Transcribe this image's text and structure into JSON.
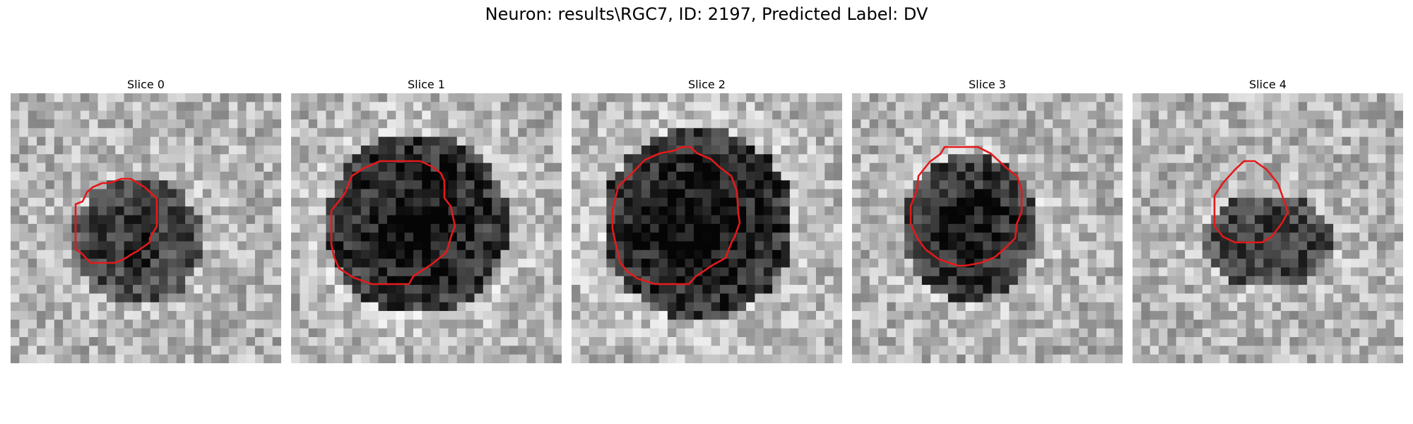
{
  "figure": {
    "title": "Neuron: results\\RGC7, ID: 2197, Predicted Label: DV",
    "contour_color": "#e31a1c"
  },
  "panels": [
    {
      "title": "Slice 0",
      "contour_points": [
        [
          140,
          127
        ],
        [
          157,
          121
        ],
        [
          170,
          121
        ],
        [
          190,
          133
        ],
        [
          207,
          149
        ],
        [
          207,
          188
        ],
        [
          197,
          205
        ],
        [
          197,
          211
        ],
        [
          180,
          223
        ],
        [
          171,
          228
        ],
        [
          160,
          235
        ],
        [
          147,
          240
        ],
        [
          113,
          240
        ],
        [
          100,
          226
        ],
        [
          92,
          221
        ],
        [
          92,
          157
        ],
        [
          102,
          153
        ],
        [
          108,
          140
        ],
        [
          116,
          133
        ],
        [
          130,
          127
        ]
      ]
    },
    {
      "title": "Slice 1",
      "contour_points": [
        [
          144,
          96
        ],
        [
          183,
          96
        ],
        [
          198,
          103
        ],
        [
          212,
          113
        ],
        [
          217,
          124
        ],
        [
          217,
          148
        ],
        [
          226,
          160
        ],
        [
          232,
          188
        ],
        [
          227,
          201
        ],
        [
          220,
          225
        ],
        [
          199,
          242
        ],
        [
          185,
          251
        ],
        [
          173,
          259
        ],
        [
          167,
          270
        ],
        [
          114,
          270
        ],
        [
          89,
          261
        ],
        [
          68,
          248
        ],
        [
          61,
          232
        ],
        [
          57,
          214
        ],
        [
          57,
          166
        ],
        [
          76,
          142
        ],
        [
          86,
          117
        ],
        [
          103,
          106
        ],
        [
          126,
          96
        ]
      ]
    },
    {
      "title": "Slice 2",
      "contour_points": [
        [
          156,
          76
        ],
        [
          168,
          76
        ],
        [
          178,
          85
        ],
        [
          197,
          93
        ],
        [
          210,
          105
        ],
        [
          226,
          117
        ],
        [
          234,
          138
        ],
        [
          236,
          170
        ],
        [
          238,
          183
        ],
        [
          231,
          203
        ],
        [
          226,
          212
        ],
        [
          218,
          233
        ],
        [
          200,
          243
        ],
        [
          176,
          259
        ],
        [
          166,
          270
        ],
        [
          138,
          270
        ],
        [
          118,
          270
        ],
        [
          93,
          262
        ],
        [
          79,
          252
        ],
        [
          69,
          240
        ],
        [
          62,
          211
        ],
        [
          58,
          192
        ],
        [
          58,
          166
        ],
        [
          66,
          132
        ],
        [
          82,
          117
        ],
        [
          104,
          94
        ],
        [
          125,
          85
        ],
        [
          146,
          81
        ]
      ]
    },
    {
      "title": "Slice 3",
      "contour_points": [
        [
          131,
          76
        ],
        [
          178,
          76
        ],
        [
          196,
          85
        ],
        [
          218,
          105
        ],
        [
          234,
          118
        ],
        [
          240,
          138
        ],
        [
          240,
          168
        ],
        [
          233,
          185
        ],
        [
          231,
          205
        ],
        [
          218,
          218
        ],
        [
          202,
          232
        ],
        [
          182,
          240
        ],
        [
          160,
          244
        ],
        [
          150,
          244
        ],
        [
          123,
          235
        ],
        [
          104,
          221
        ],
        [
          93,
          206
        ],
        [
          83,
          185
        ],
        [
          83,
          160
        ],
        [
          92,
          136
        ],
        [
          94,
          117
        ],
        [
          110,
          97
        ],
        [
          125,
          86
        ]
      ]
    },
    {
      "title": "Slice 4",
      "contour_points": [
        [
          158,
          96
        ],
        [
          173,
          96
        ],
        [
          190,
          108
        ],
        [
          206,
          128
        ],
        [
          212,
          145
        ],
        [
          220,
          168
        ],
        [
          212,
          183
        ],
        [
          197,
          203
        ],
        [
          183,
          211
        ],
        [
          145,
          211
        ],
        [
          128,
          203
        ],
        [
          116,
          188
        ],
        [
          116,
          145
        ],
        [
          128,
          127
        ],
        [
          145,
          108
        ]
      ]
    }
  ]
}
